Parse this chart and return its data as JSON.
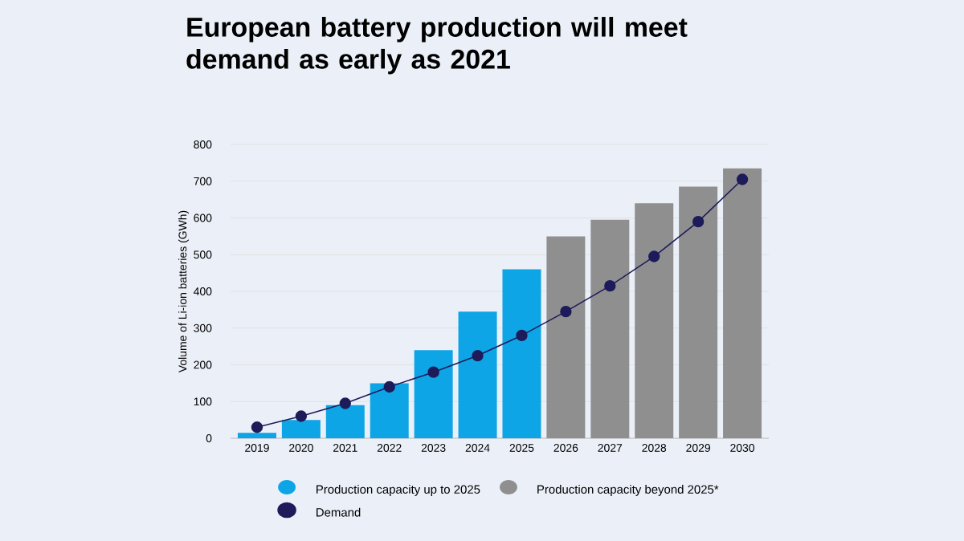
{
  "chart_data": {
    "type": "bar",
    "title": "European battery production will meet demand as early as 2021",
    "ylabel": "Volume of Li-ion batteries (GWh)",
    "categories": [
      "2019",
      "2020",
      "2021",
      "2022",
      "2023",
      "2024",
      "2025",
      "2026",
      "2027",
      "2028",
      "2029",
      "2030"
    ],
    "series": [
      {
        "name": "Production capacity up to 2025",
        "color": "#0ea5e6",
        "values": [
          15,
          50,
          90,
          150,
          240,
          345,
          460,
          null,
          null,
          null,
          null,
          null
        ]
      },
      {
        "name": "Production capacity beyond 2025*",
        "color": "#8f8f8f",
        "values": [
          null,
          null,
          null,
          null,
          null,
          null,
          null,
          550,
          595,
          640,
          685,
          735
        ]
      },
      {
        "name": "Demand",
        "type": "line",
        "color": "#1e1b5a",
        "marker": "circle",
        "values": [
          30,
          60,
          95,
          140,
          180,
          225,
          280,
          345,
          415,
          495,
          590,
          705
        ]
      }
    ],
    "ylim": [
      0,
      800
    ],
    "yticks": [
      0,
      100,
      200,
      300,
      400,
      500,
      600,
      700,
      800
    ],
    "grid": "y",
    "legend": "bottom"
  }
}
